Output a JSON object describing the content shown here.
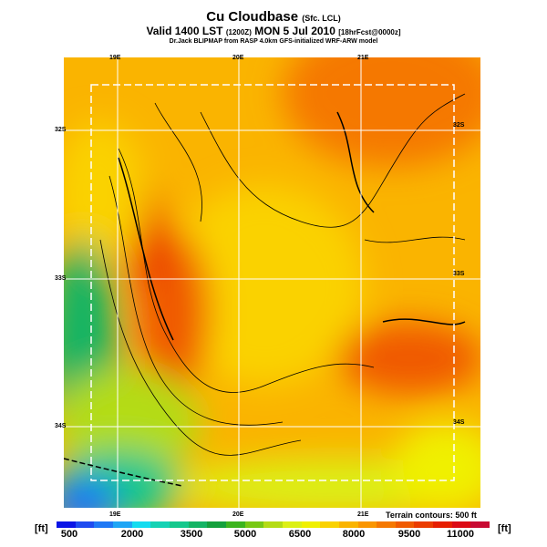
{
  "title": {
    "main": "Cu Cloudbase",
    "main_note": "(Sfc. LCL)",
    "valid": "Valid 1400 LST",
    "valid_z": "(1200Z)",
    "valid_date": "MON 5 Jul 2010",
    "valid_fcst": "[18hrFcst@0000z]",
    "source": "Dr.Jack BLIPMAP from RASP 4.0km GFS-initialized WRF-ARW model"
  },
  "axes": {
    "lon": [
      "19E",
      "20E",
      "21E"
    ],
    "lat": [
      "32S",
      "33S",
      "34S"
    ]
  },
  "terrain_note": "Terrain contours: 500 ft",
  "colorbar": {
    "unit": "[ft]",
    "labels": [
      "500",
      "2000",
      "3500",
      "5000",
      "6500",
      "8000",
      "9500",
      "11000"
    ],
    "colors": [
      "#0a14e6",
      "#1e4bf0",
      "#1e78f5",
      "#1ea5f5",
      "#14dcf0",
      "#14d2b4",
      "#14c88c",
      "#14b464",
      "#14a03c",
      "#3cb41e",
      "#78c814",
      "#b4dc14",
      "#dcf014",
      "#f0f000",
      "#fad200",
      "#fab400",
      "#fa9600",
      "#f57800",
      "#f05a00",
      "#eb3c00",
      "#e61e00",
      "#dc0a14",
      "#c80a32"
    ]
  }
}
